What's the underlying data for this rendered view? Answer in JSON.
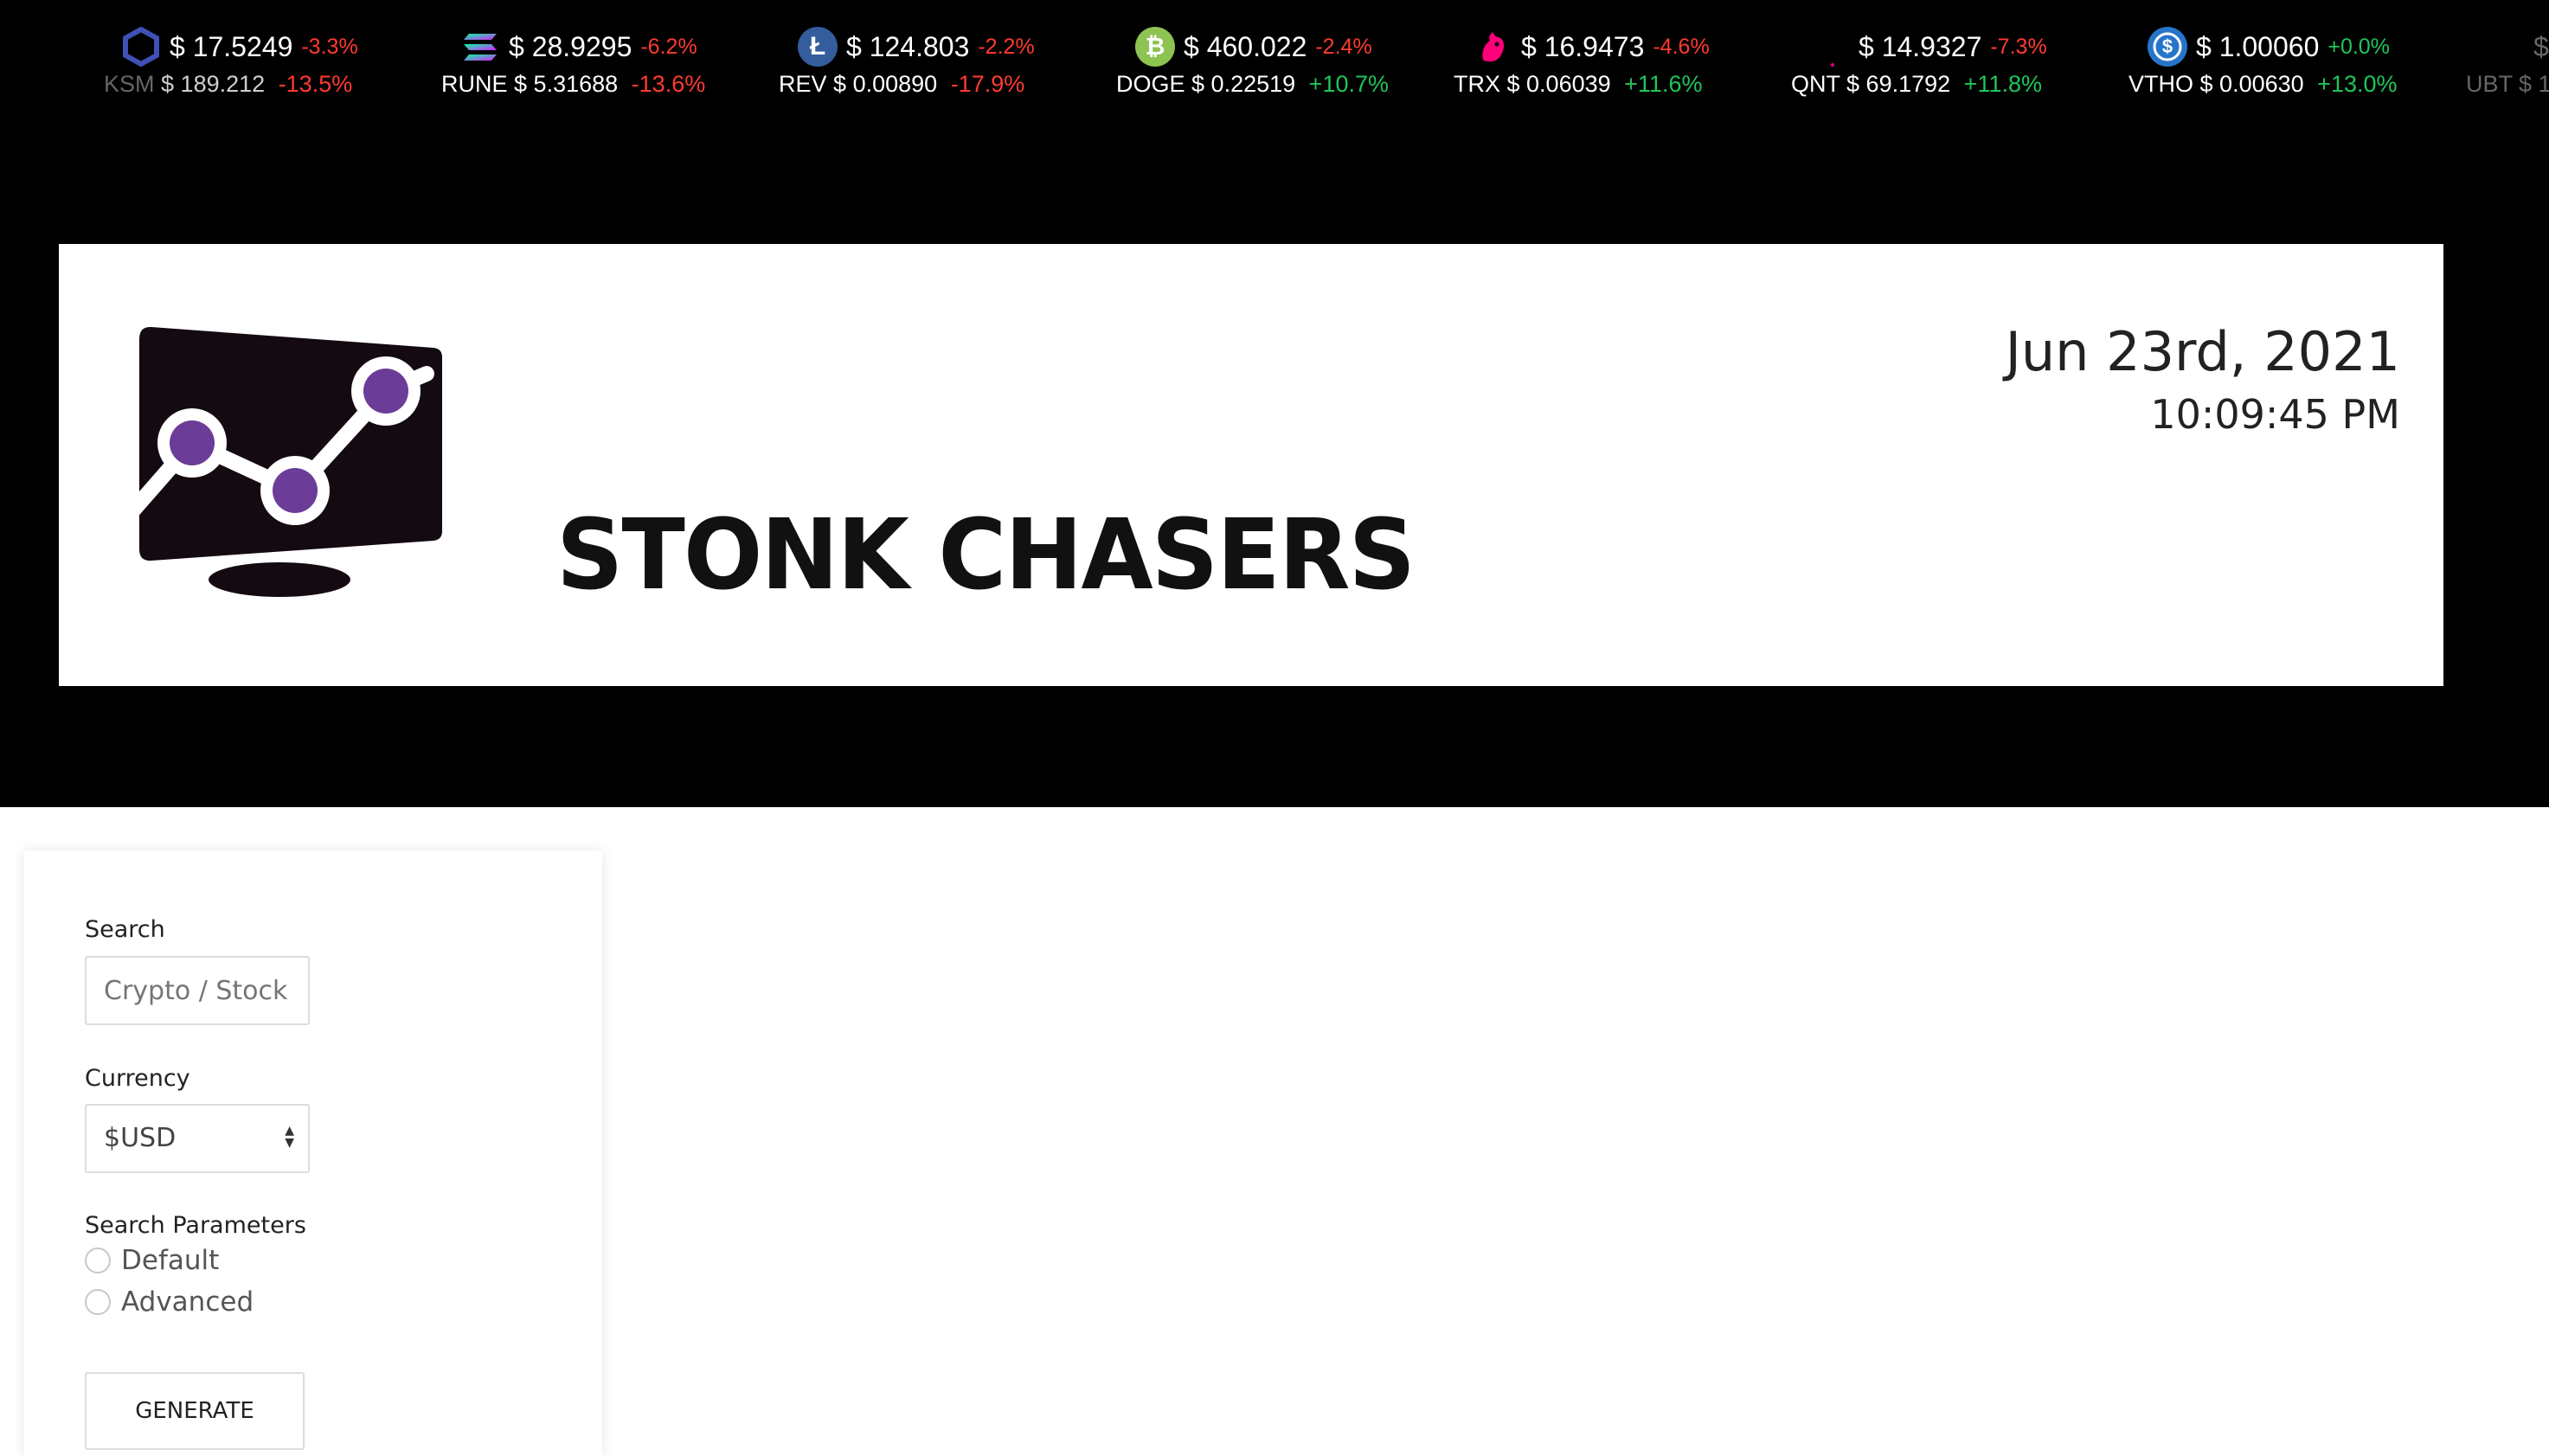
{
  "ticker": [
    {
      "top_symbol": "",
      "top_price": "$ 17.5249",
      "top_change": "-3.3%",
      "top_dir": "neg",
      "icon": "hexagon-coin-icon",
      "icon_color": "#2f3a8f",
      "icon_glyph": "⬡",
      "bottom_symbol": "KSM",
      "bottom_price": "$ 189.212",
      "bottom_change": "-13.5%",
      "bottom_dir": "neg"
    },
    {
      "top_symbol": "",
      "top_price": "$ 28.9295",
      "top_change": "-6.2%",
      "top_dir": "neg",
      "icon": "solana-coin-icon",
      "icon_color": "#14f195",
      "icon_glyph": "≡",
      "bottom_symbol": "RUNE",
      "bottom_price": "$ 5.31688",
      "bottom_change": "-13.6%",
      "bottom_dir": "neg"
    },
    {
      "top_symbol": "",
      "top_price": "$ 124.803",
      "top_change": "-2.2%",
      "top_dir": "neg",
      "icon": "litecoin-icon",
      "icon_color": "#345d9d",
      "icon_glyph": "Ł",
      "bottom_symbol": "REV",
      "bottom_price": "$ 0.00890",
      "bottom_change": "-17.9%",
      "bottom_dir": "neg"
    },
    {
      "top_symbol": "",
      "top_price": "$ 460.022",
      "top_change": "-2.4%",
      "top_dir": "neg",
      "icon": "bitcoin-cash-icon",
      "icon_color": "#8dc351",
      "icon_glyph": "₿",
      "bottom_symbol": "DOGE",
      "bottom_price": "$ 0.22519",
      "bottom_change": "+10.7%",
      "bottom_dir": "pos"
    },
    {
      "top_symbol": "",
      "top_price": "$ 16.9473",
      "top_change": "-4.6%",
      "top_dir": "neg",
      "icon": "uniswap-icon",
      "icon_color": "#ff007a",
      "icon_glyph": "🦄",
      "bottom_symbol": "TRX",
      "bottom_price": "$ 0.06039",
      "bottom_change": "+11.6%",
      "bottom_dir": "pos"
    },
    {
      "top_symbol": "",
      "top_price": "$ 14.9327",
      "top_change": "-7.3%",
      "top_dir": "neg",
      "icon": "dot-icon",
      "icon_color": "#000000",
      "icon_glyph": "",
      "bottom_symbol": "QNT",
      "bottom_price": "$ 69.1792",
      "bottom_change": "+11.8%",
      "bottom_dir": "pos"
    },
    {
      "top_symbol": "",
      "top_price": "$ 1.00060",
      "top_change": "+0.0%",
      "top_dir": "pos",
      "icon": "usdc-coin-icon",
      "icon_color": "#2775ca",
      "icon_glyph": "$",
      "bottom_symbol": "VTHO",
      "bottom_price": "$ 0.00630",
      "bottom_change": "+13.0%",
      "bottom_dir": "pos"
    },
    {
      "top_symbol": "",
      "top_price": "$",
      "top_change": "",
      "top_dir": "neg",
      "icon": "",
      "icon_color": "#000000",
      "icon_glyph": "",
      "bottom_symbol": "UBT",
      "bottom_price": "$ 1",
      "bottom_change": "",
      "bottom_dir": "pos"
    }
  ],
  "header": {
    "brand": "STONK CHASERS",
    "date": "Jun 23rd, 2021",
    "time": "10:09:45 PM"
  },
  "form": {
    "search_label": "Search",
    "search_placeholder": "Crypto / Stock",
    "currency_label": "Currency",
    "currency_value": "$USD",
    "params_label": "Search Parameters",
    "option_default": "Default",
    "option_advanced": "Advanced",
    "generate_label": "GENERATE"
  },
  "colors": {
    "negative": "#ff3b30",
    "positive": "#20c55a",
    "logo_dark": "#140a12",
    "logo_purple": "#6b3d98"
  }
}
